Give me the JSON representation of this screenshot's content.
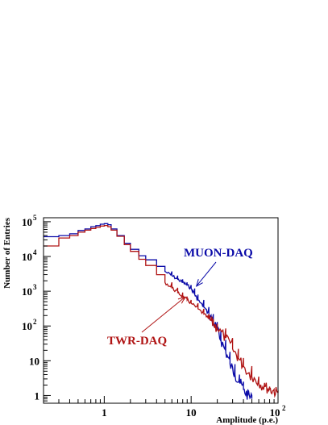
{
  "chart_data": {
    "type": "line",
    "xlabel": "Amplitude (p.e.)",
    "ylabel": "Number of Entries",
    "xscale": "log",
    "yscale": "log",
    "xlim": [
      0.2,
      100
    ],
    "ylim": [
      0.6,
      130000
    ],
    "x_ticks": [
      {
        "value": 1,
        "label": "1"
      },
      {
        "value": 10,
        "label": "10"
      },
      {
        "value": 100,
        "label": "10",
        "exp": "2"
      }
    ],
    "y_ticks": [
      {
        "value": 1,
        "label": "1"
      },
      {
        "value": 10,
        "label": "10"
      },
      {
        "value": 100,
        "label": "10",
        "exp": "2"
      },
      {
        "value": 1000,
        "label": "10",
        "exp": "3"
      },
      {
        "value": 10000,
        "label": "10",
        "exp": "4"
      },
      {
        "value": 100000,
        "label": "10",
        "exp": "5"
      }
    ],
    "grid": false,
    "series": [
      {
        "name": "MUON-DAQ",
        "color": "#0a0aa8",
        "x": [
          0.2,
          0.3,
          0.4,
          0.5,
          0.6,
          0.7,
          0.8,
          0.9,
          1.0,
          1.1,
          1.2,
          1.4,
          1.7,
          2.0,
          2.5,
          3.0,
          4.0,
          5.0,
          6.0,
          7.0,
          8.0,
          9.0,
          10.0,
          11.0,
          12.0,
          14.0,
          16.0,
          18.0,
          20.0,
          22.0,
          25.0,
          28.0,
          32.0,
          36.0,
          40.0,
          45.0,
          50.0
        ],
        "values": [
          37000,
          40000,
          45000,
          56000,
          62000,
          72000,
          77000,
          85000,
          88000,
          82000,
          62000,
          40000,
          24000,
          16000,
          10500,
          8000,
          5200,
          3700,
          2800,
          2200,
          1800,
          1500,
          1200,
          800,
          560,
          350,
          220,
          130,
          75,
          40,
          18,
          8,
          4,
          2.5,
          1.5,
          1,
          0.8
        ]
      },
      {
        "name": "TWR-DAQ",
        "color": "#b01414",
        "x": [
          0.2,
          0.3,
          0.4,
          0.5,
          0.6,
          0.7,
          0.8,
          0.9,
          1.0,
          1.1,
          1.2,
          1.4,
          1.7,
          2.0,
          2.5,
          3.0,
          4.0,
          5.0,
          6.0,
          7.0,
          8.0,
          9.0,
          10.0,
          12.0,
          14.0,
          16.0,
          18.0,
          20.0,
          25.0,
          30.0,
          35.0,
          40.0,
          50.0,
          60.0,
          70.0,
          80.0,
          90.0,
          100.0
        ],
        "values": [
          20000,
          34000,
          40000,
          50000,
          57000,
          64000,
          69000,
          75000,
          78000,
          72000,
          57000,
          38000,
          22000,
          14000,
          8300,
          5500,
          3000,
          1800,
          1250,
          920,
          700,
          560,
          450,
          310,
          220,
          160,
          115,
          85,
          45,
          22,
          12,
          7,
          3.5,
          2.3,
          1.8,
          1.5,
          1.3,
          1.2
        ]
      }
    ],
    "annotations": [
      {
        "text": "MUON-DAQ",
        "color": "#0a0aa8",
        "arrow_to": [
          11.5,
          1400
        ]
      },
      {
        "text": "TWR-DAQ",
        "color": "#b01414",
        "arrow_to": [
          8.5,
          680
        ]
      }
    ],
    "legend": "none"
  }
}
